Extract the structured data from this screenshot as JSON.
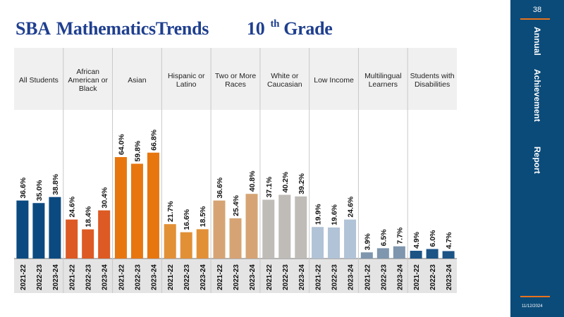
{
  "title": {
    "part1": "SBA",
    "part2": "MathematicsTrends",
    "part3": "10",
    "superscript": "th",
    "part4": "Grade"
  },
  "sidebar": {
    "page_number": "38",
    "words": [
      "Annual",
      "Achievement",
      "Report"
    ],
    "date": "11/12/2024"
  },
  "colors": {
    "title": "#1f3f8f",
    "sidebar_bg": "#0b4b79",
    "accent": "#e8731c",
    "header_bg": "#f0f0f0",
    "axis_band": "#e4e4e4"
  },
  "chart_data": {
    "type": "bar",
    "years": [
      "2021-22",
      "2022-23",
      "2023-24"
    ],
    "ylim": [
      0,
      100
    ],
    "grid": false,
    "legend": "none",
    "groups": [
      {
        "name": "All Students",
        "color": "#0b4a80",
        "values": [
          36.6,
          35.0,
          38.8
        ],
        "labels": [
          "36.6%",
          "35.0%",
          "38.8%"
        ]
      },
      {
        "name": "African American or Black",
        "color": "#dd5a24",
        "values": [
          24.6,
          18.4,
          30.4
        ],
        "labels": [
          "24.6%",
          "18.4%",
          "30.4%"
        ]
      },
      {
        "name": "Asian",
        "color": "#e8760f",
        "values": [
          64.0,
          59.8,
          66.8
        ],
        "labels": [
          "64.0%",
          "59.8%",
          "66.8%"
        ]
      },
      {
        "name": "Hispanic or Latino",
        "color": "#e29036",
        "values": [
          21.7,
          16.6,
          18.5
        ],
        "labels": [
          "21.7%",
          "16.6%",
          "18.5%"
        ]
      },
      {
        "name": "Two or More Races",
        "color": "#d6a474",
        "values": [
          36.6,
          25.4,
          40.8
        ],
        "labels": [
          "36.6%",
          "25.4%",
          "40.8%"
        ]
      },
      {
        "name": "White or Caucasian",
        "color": "#bfbcb8",
        "values": [
          37.1,
          40.2,
          39.2
        ],
        "labels": [
          "37.1%",
          "40.2%",
          "39.2%"
        ]
      },
      {
        "name": "Low Income",
        "color": "#b1c3d6",
        "values": [
          19.9,
          19.6,
          24.6
        ],
        "labels": [
          "19.9%",
          "19.6%",
          "24.6%"
        ]
      },
      {
        "name": "Multilingual Learners",
        "color": "#7e96ae",
        "values": [
          3.9,
          6.5,
          7.7
        ],
        "labels": [
          "3.9%",
          "6.5%",
          "7.7%"
        ]
      },
      {
        "name": "Students with Disabilities",
        "color": "#1b5485",
        "values": [
          4.9,
          6.0,
          4.7
        ],
        "labels": [
          "4.9%",
          "6.0%",
          "4.7%"
        ]
      }
    ]
  }
}
